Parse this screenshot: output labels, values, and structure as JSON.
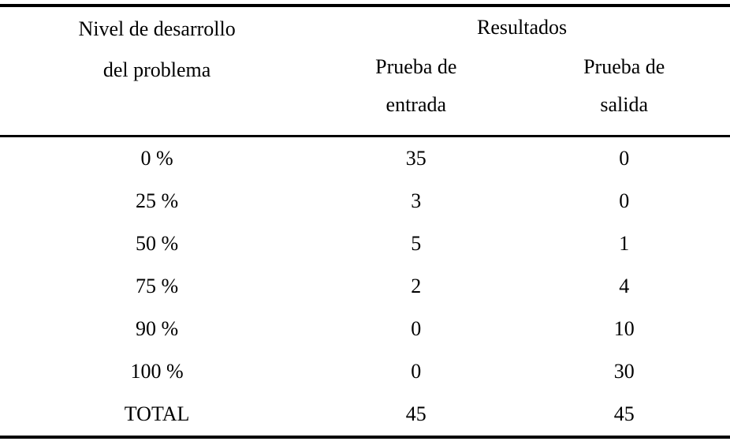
{
  "table": {
    "nivel_header": {
      "line1": "Nivel de desarrollo",
      "line2": "del problema"
    },
    "resultados_group_header": "Resultados",
    "entrada_header": {
      "line1": "Prueba de",
      "line2": "entrada"
    },
    "salida_header": {
      "line1": "Prueba de",
      "line2": "salida"
    },
    "rows": [
      {
        "level": "0 %",
        "entrada": "35",
        "salida": "0"
      },
      {
        "level": "25 %",
        "entrada": "3",
        "salida": "0"
      },
      {
        "level": "50 %",
        "entrada": "5",
        "salida": "1"
      },
      {
        "level": "75 %",
        "entrada": "2",
        "salida": "4"
      },
      {
        "level": "90 %",
        "entrada": "0",
        "salida": "10"
      },
      {
        "level": "100 %",
        "entrada": "0",
        "salida": "30"
      },
      {
        "level": "TOTAL",
        "entrada": "45",
        "salida": "45"
      }
    ],
    "colors": {
      "text": "#000000",
      "background": "#ffffff",
      "rule": "#000000"
    }
  },
  "chart_data": {
    "type": "table",
    "title": "Resultados",
    "xlabel": "Nivel de desarrollo del problema",
    "categories": [
      "0 %",
      "25 %",
      "50 %",
      "75 %",
      "90 %",
      "100 %",
      "TOTAL"
    ],
    "series": [
      {
        "name": "Prueba de entrada",
        "values": [
          35,
          3,
          5,
          2,
          0,
          0,
          45
        ]
      },
      {
        "name": "Prueba de salida",
        "values": [
          0,
          0,
          1,
          4,
          10,
          30,
          45
        ]
      }
    ]
  }
}
